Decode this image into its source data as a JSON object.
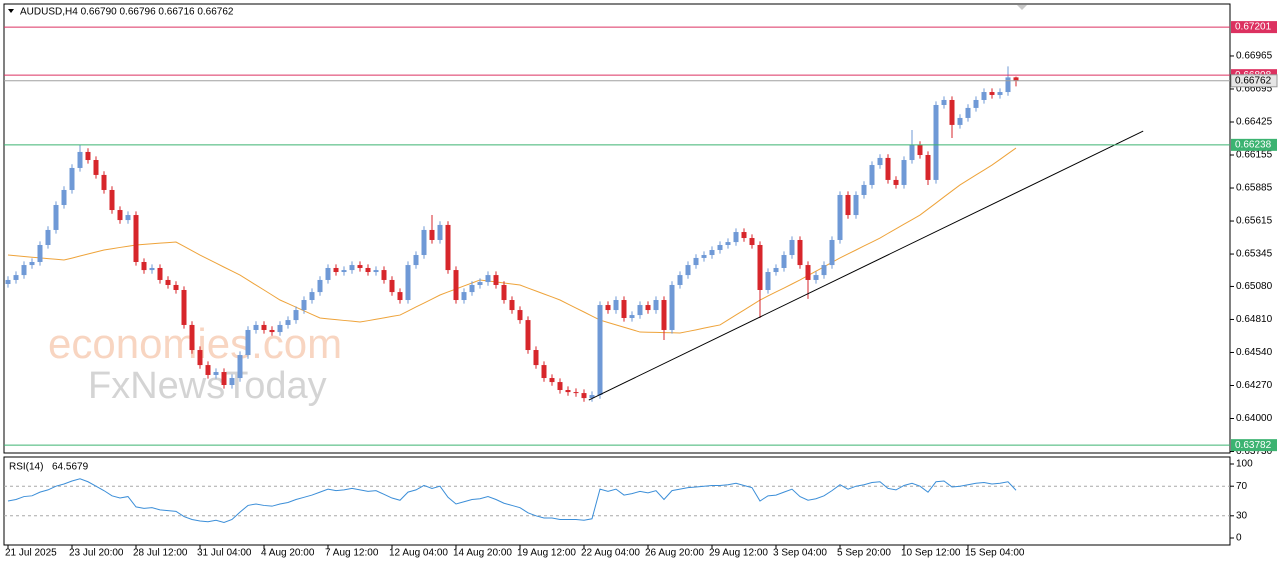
{
  "chart_data": [
    {
      "type": "candlestick",
      "title": "AUDUSD,H4  0.66790 0.66796 0.66716 0.66762",
      "categories": [
        "21 Jul 2025",
        null,
        null,
        null,
        null,
        null,
        null,
        null,
        "23 Jul 20:00",
        null,
        null,
        null,
        null,
        null,
        null,
        null,
        "28 Jul 12:00",
        null,
        null,
        null,
        null,
        null,
        null,
        null,
        "31 Jul 04:00",
        null,
        null,
        null,
        null,
        null,
        null,
        null,
        "4 Aug 20:00",
        null,
        null,
        null,
        null,
        null,
        null,
        null,
        "7 Aug 12:00",
        null,
        null,
        null,
        null,
        null,
        null,
        null,
        "12 Aug 04:00",
        null,
        null,
        null,
        null,
        null,
        null,
        null,
        "14 Aug 20:00",
        null,
        null,
        null,
        null,
        null,
        null,
        null,
        "19 Aug 12:00",
        null,
        null,
        null,
        null,
        null,
        null,
        null,
        "22 Aug 04:00",
        null,
        null,
        null,
        null,
        null,
        null,
        null,
        "26 Aug 20:00",
        null,
        null,
        null,
        null,
        null,
        null,
        null,
        "29 Aug 12:00",
        null,
        null,
        null,
        null,
        null,
        null,
        null,
        "3 Sep 04:00",
        null,
        null,
        null,
        null,
        null,
        null,
        null,
        "5 Sep 20:00",
        null,
        null,
        null,
        null,
        null,
        null,
        null,
        "10 Sep 12:00",
        null,
        null,
        null,
        null,
        null,
        null,
        null,
        "15 Sep 04:00",
        null,
        null,
        null,
        null,
        null,
        null
      ],
      "open": [
        0.651,
        0.65133,
        0.65173,
        0.65255,
        0.6528,
        0.65419,
        0.65542,
        0.65746,
        0.65869,
        0.66049,
        0.6618,
        0.66114,
        0.65992,
        0.65869,
        0.65705,
        0.65623,
        0.65664,
        0.6528,
        0.65214,
        0.65231,
        0.65133,
        0.65092,
        0.65051,
        0.64765,
        0.6456,
        0.64437,
        0.64356,
        0.6438,
        0.64274,
        0.64331,
        0.64519,
        0.64724,
        0.64765,
        0.64724,
        0.64707,
        0.64765,
        0.64805,
        0.64887,
        0.64969,
        0.65034,
        0.65133,
        0.65231,
        0.65198,
        0.65214,
        0.65255,
        0.65231,
        0.65198,
        0.65214,
        0.65133,
        0.65034,
        0.64969,
        0.65255,
        0.65337,
        0.65542,
        0.6546,
        0.65583,
        0.65214,
        0.64969,
        0.65034,
        0.65092,
        0.65116,
        0.65173,
        0.65092,
        0.64969,
        0.64887,
        0.64805,
        0.6456,
        0.64437,
        0.64331,
        0.64298,
        0.64233,
        0.64216,
        0.64208,
        0.64167,
        0.64192,
        0.64928,
        0.64887,
        0.64969,
        0.64822,
        0.64846,
        0.64928,
        0.64887,
        0.64969,
        0.64724,
        0.65092,
        0.65173,
        0.65255,
        0.65313,
        0.65337,
        0.65378,
        0.65419,
        0.65443,
        0.65525,
        0.65476,
        0.65419,
        0.65051,
        0.65198,
        0.65231,
        0.65337,
        0.6546,
        0.65255,
        0.65133,
        0.65173,
        0.65255,
        0.6546,
        0.65828,
        0.65664,
        0.65828,
        0.6591,
        0.66073,
        0.66131,
        0.65951,
        0.6591,
        0.66114,
        0.66237,
        0.66155,
        0.65951,
        0.66564,
        0.66605,
        0.66401,
        0.66458,
        0.6654,
        0.66605,
        0.6667,
        0.66646,
        0.6667,
        0.6679
      ],
      "high": [
        0.65163,
        0.65203,
        0.65285,
        0.6531,
        0.65449,
        0.65572,
        0.65776,
        0.65899,
        0.66079,
        0.66237,
        0.6621,
        0.66144,
        0.66022,
        0.65899,
        0.65735,
        0.65694,
        0.65694,
        0.6531,
        0.65261,
        0.65261,
        0.65163,
        0.65122,
        0.65081,
        0.64795,
        0.6459,
        0.64467,
        0.6441,
        0.6441,
        0.64361,
        0.64549,
        0.64754,
        0.64795,
        0.64795,
        0.64754,
        0.64795,
        0.64835,
        0.64917,
        0.64999,
        0.65064,
        0.65163,
        0.65261,
        0.65261,
        0.65244,
        0.65285,
        0.65285,
        0.65261,
        0.65244,
        0.65244,
        0.65163,
        0.65064,
        0.65285,
        0.65367,
        0.65572,
        0.65664,
        0.65613,
        0.65613,
        0.65244,
        0.65064,
        0.65122,
        0.65146,
        0.65203,
        0.65203,
        0.65122,
        0.64999,
        0.64917,
        0.64835,
        0.6459,
        0.64467,
        0.64361,
        0.64328,
        0.64263,
        0.64246,
        0.64238,
        0.64222,
        0.64958,
        0.64958,
        0.64999,
        0.64999,
        0.64876,
        0.64958,
        0.64958,
        0.64999,
        0.64999,
        0.65122,
        0.65203,
        0.65285,
        0.65343,
        0.65367,
        0.65408,
        0.65449,
        0.65473,
        0.65555,
        0.65555,
        0.65506,
        0.65449,
        0.65228,
        0.65261,
        0.65367,
        0.6549,
        0.6549,
        0.65285,
        0.65203,
        0.65285,
        0.6549,
        0.65858,
        0.65858,
        0.65858,
        0.6594,
        0.66103,
        0.66161,
        0.66161,
        0.65981,
        0.66144,
        0.6636,
        0.66267,
        0.66185,
        0.66594,
        0.66635,
        0.66635,
        0.66488,
        0.6657,
        0.66635,
        0.667,
        0.667,
        0.667,
        0.6688,
        0.66796
      ],
      "low": [
        0.6507,
        0.65103,
        0.65143,
        0.65225,
        0.6525,
        0.65389,
        0.65512,
        0.65716,
        0.65839,
        0.66019,
        0.66084,
        0.65962,
        0.65839,
        0.65675,
        0.65593,
        0.65593,
        0.6525,
        0.65184,
        0.65184,
        0.65103,
        0.65062,
        0.65021,
        0.64735,
        0.6453,
        0.64407,
        0.64326,
        0.64326,
        0.64244,
        0.64244,
        0.64301,
        0.64489,
        0.64694,
        0.64694,
        0.64677,
        0.64677,
        0.64735,
        0.64775,
        0.64857,
        0.64939,
        0.65004,
        0.65103,
        0.65168,
        0.65168,
        0.65184,
        0.65201,
        0.65168,
        0.65168,
        0.65103,
        0.65004,
        0.64939,
        0.64939,
        0.65225,
        0.65307,
        0.6543,
        0.6543,
        0.65184,
        0.64939,
        0.64939,
        0.65004,
        0.65062,
        0.65086,
        0.65062,
        0.64939,
        0.64857,
        0.64775,
        0.6453,
        0.64407,
        0.64301,
        0.64268,
        0.64203,
        0.64186,
        0.64178,
        0.64137,
        0.64137,
        0.64162,
        0.64857,
        0.64857,
        0.64792,
        0.64792,
        0.64816,
        0.64857,
        0.64857,
        0.64642,
        0.64694,
        0.65062,
        0.65143,
        0.65225,
        0.65283,
        0.65307,
        0.65348,
        0.65389,
        0.65413,
        0.65446,
        0.65389,
        0.64822,
        0.65021,
        0.65168,
        0.65201,
        0.65307,
        0.65225,
        0.64978,
        0.65103,
        0.65143,
        0.65225,
        0.6543,
        0.65634,
        0.65634,
        0.65798,
        0.6588,
        0.66043,
        0.65921,
        0.6588,
        0.6588,
        0.66084,
        0.66125,
        0.6591,
        0.65921,
        0.66534,
        0.66294,
        0.66371,
        0.66428,
        0.6651,
        0.66575,
        0.66616,
        0.66616,
        0.6664,
        0.66716
      ],
      "close": [
        0.65133,
        0.65173,
        0.65255,
        0.6528,
        0.65419,
        0.65542,
        0.65746,
        0.65869,
        0.66049,
        0.6618,
        0.66114,
        0.65992,
        0.65869,
        0.65705,
        0.65623,
        0.65664,
        0.6528,
        0.65214,
        0.65231,
        0.65133,
        0.65092,
        0.65051,
        0.64765,
        0.6456,
        0.64437,
        0.64356,
        0.6438,
        0.64274,
        0.64331,
        0.64519,
        0.64724,
        0.64765,
        0.64724,
        0.64707,
        0.64765,
        0.64805,
        0.64887,
        0.64969,
        0.65034,
        0.65133,
        0.65231,
        0.65198,
        0.65214,
        0.65255,
        0.65231,
        0.65198,
        0.65214,
        0.65133,
        0.65034,
        0.64969,
        0.65255,
        0.65337,
        0.65542,
        0.6546,
        0.65583,
        0.65214,
        0.64969,
        0.65034,
        0.65092,
        0.65116,
        0.65173,
        0.65092,
        0.64969,
        0.64887,
        0.64805,
        0.6456,
        0.64437,
        0.64331,
        0.64298,
        0.64233,
        0.64216,
        0.64208,
        0.64167,
        0.64192,
        0.64928,
        0.64887,
        0.64969,
        0.64822,
        0.64846,
        0.64928,
        0.64887,
        0.64969,
        0.64724,
        0.65092,
        0.65173,
        0.65255,
        0.65313,
        0.65337,
        0.65378,
        0.65419,
        0.65443,
        0.65525,
        0.65476,
        0.65419,
        0.65051,
        0.65198,
        0.65231,
        0.65337,
        0.6546,
        0.65255,
        0.65133,
        0.65173,
        0.65255,
        0.6546,
        0.65828,
        0.65664,
        0.65828,
        0.6591,
        0.66073,
        0.66131,
        0.65951,
        0.6591,
        0.66114,
        0.66237,
        0.66155,
        0.65951,
        0.66564,
        0.66605,
        0.66401,
        0.66458,
        0.6654,
        0.66605,
        0.6667,
        0.66646,
        0.6667,
        0.6679,
        0.66762
      ],
      "up_color": "#6f99d6",
      "down_color": "#d7262b",
      "moving_average": {
        "color": "#eea33a",
        "values": [
          0.65337,
          0.65331,
          0.65325,
          0.65319,
          0.65314,
          0.65308,
          0.65302,
          0.65296,
          0.65312,
          0.65329,
          0.65345,
          0.65362,
          0.65378,
          0.65388,
          0.65399,
          0.65409,
          0.65419,
          0.65424,
          0.65429,
          0.65434,
          0.65438,
          0.65443,
          0.65408,
          0.65372,
          0.65337,
          0.65304,
          0.65271,
          0.65238,
          0.65206,
          0.65173,
          0.65132,
          0.65091,
          0.65051,
          0.6501,
          0.64969,
          0.6494,
          0.6491,
          0.64881,
          0.64851,
          0.64822,
          0.64815,
          0.64809,
          0.64802,
          0.64796,
          0.64789,
          0.648,
          0.64812,
          0.64823,
          0.64835,
          0.64846,
          0.64879,
          0.64912,
          0.64944,
          0.64977,
          0.6501,
          0.65035,
          0.65059,
          0.65084,
          0.65108,
          0.65133,
          0.65125,
          0.65117,
          0.65108,
          0.651,
          0.65092,
          0.65067,
          0.65043,
          0.65018,
          0.64994,
          0.64969,
          0.64936,
          0.64903,
          0.64871,
          0.64838,
          0.64805,
          0.64785,
          0.64766,
          0.64746,
          0.64727,
          0.64707,
          0.64705,
          0.64704,
          0.64702,
          0.64701,
          0.64699,
          0.64712,
          0.64725,
          0.64739,
          0.64752,
          0.64765,
          0.64806,
          0.64847,
          0.64887,
          0.64928,
          0.64969,
          0.65002,
          0.65035,
          0.65067,
          0.651,
          0.65133,
          0.65169,
          0.65205,
          0.65241,
          0.65277,
          0.65313,
          0.65346,
          0.65378,
          0.65411,
          0.65443,
          0.65476,
          0.65514,
          0.65551,
          0.65589,
          0.65626,
          0.65664,
          0.65713,
          0.65762,
          0.65812,
          0.65861,
          0.6591,
          0.65951,
          0.65992,
          0.66032,
          0.66073,
          0.66119,
          0.66166,
          0.66212
        ]
      },
      "ylim": [
        0.63726,
        0.6739
      ],
      "yticks": [
        {
          "value": 0.6373,
          "label": "0.63730"
        },
        {
          "value": 0.64,
          "label": "0.64000"
        },
        {
          "value": 0.6427,
          "label": "0.64270"
        },
        {
          "value": 0.6454,
          "label": "0.64540"
        },
        {
          "value": 0.6481,
          "label": "0.64810"
        },
        {
          "value": 0.6508,
          "label": "0.65080"
        },
        0.65345,
        0.65615,
        0.65885,
        0.66155,
        0.66425,
        0.66695,
        0.66965
      ],
      "grid": false,
      "levels": [
        {
          "value": 0.67201,
          "color": "#dc3160"
        },
        {
          "value": 0.66808,
          "color": "#dc3160"
        },
        {
          "value": 0.66238,
          "color": "#3cb371"
        },
        {
          "value": 0.63782,
          "color": "#3cb371"
        }
      ],
      "trendline": {
        "x": [
          72.6,
          141.9
        ],
        "y": [
          0.64151,
          0.66351
        ],
        "color": "#000000"
      },
      "watermark": [
        "economies.com",
        "FxNewsToday"
      ]
    },
    {
      "type": "line",
      "title": "RSI(14)",
      "color": "#3b8ed8",
      "values": [
        50,
        52,
        56,
        57,
        62,
        65,
        70,
        73,
        77,
        80,
        76,
        70,
        64,
        57,
        54,
        56,
        42,
        40,
        41,
        38,
        37,
        36,
        29,
        25,
        23,
        22,
        24,
        21,
        25,
        35,
        44,
        46,
        44,
        43,
        46,
        48,
        52,
        55,
        58,
        62,
        66,
        64,
        65,
        67,
        65,
        63,
        64,
        59,
        54,
        51,
        62,
        65,
        71,
        67,
        70,
        55,
        46,
        49,
        52,
        53,
        56,
        52,
        47,
        44,
        41,
        34,
        30,
        27,
        27,
        25,
        25,
        25,
        24,
        26,
        66,
        63,
        66,
        58,
        60,
        63,
        61,
        64,
        52,
        64,
        66,
        68,
        69,
        70,
        71,
        71,
        72,
        74,
        71,
        68,
        50,
        57,
        58,
        62,
        66,
        56,
        51,
        53,
        57,
        64,
        72,
        66,
        70,
        72,
        75,
        76,
        67,
        65,
        71,
        74,
        70,
        62,
        76,
        77,
        69,
        70,
        72,
        74,
        75,
        73,
        74,
        76,
        64.5679
      ],
      "ylim": [
        0,
        100
      ],
      "yticks": [
        0,
        30,
        70,
        100
      ]
    }
  ]
}
